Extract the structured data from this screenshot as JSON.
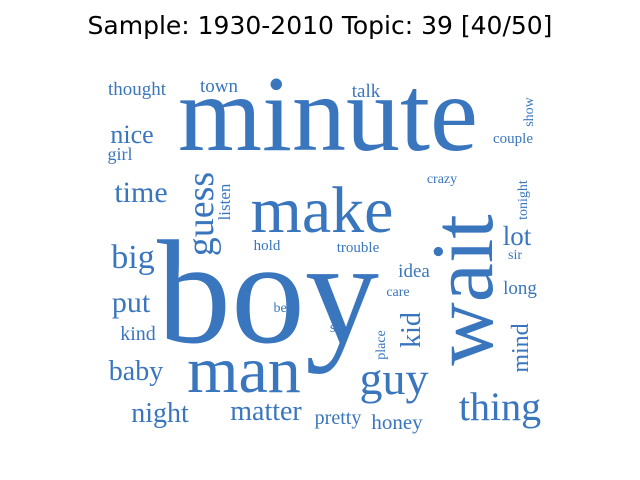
{
  "title": "Sample: 1930-2010 Topic: 39 [40/50]",
  "colors": {
    "word": "#3a76be",
    "title": "#000000",
    "background": "#ffffff"
  },
  "words": [
    {
      "text": "minute"
    },
    {
      "text": "boy"
    },
    {
      "text": "wait",
      "rotated": true
    },
    {
      "text": "make"
    },
    {
      "text": "man"
    },
    {
      "text": "guy"
    },
    {
      "text": "thing"
    },
    {
      "text": "guess",
      "rotated": true
    },
    {
      "text": "time"
    },
    {
      "text": "big"
    },
    {
      "text": "put"
    },
    {
      "text": "night"
    },
    {
      "text": "matter"
    },
    {
      "text": "nice"
    },
    {
      "text": "baby"
    },
    {
      "text": "lot"
    },
    {
      "text": "kid",
      "rotated": true
    },
    {
      "text": "mind",
      "rotated": true
    },
    {
      "text": "kind"
    },
    {
      "text": "honey"
    },
    {
      "text": "pretty"
    },
    {
      "text": "thought"
    },
    {
      "text": "town"
    },
    {
      "text": "talk"
    },
    {
      "text": "girl"
    },
    {
      "text": "long"
    },
    {
      "text": "idea"
    },
    {
      "text": "listen",
      "rotated": true
    },
    {
      "text": "couple"
    },
    {
      "text": "show",
      "rotated": true
    },
    {
      "text": "tonight",
      "rotated": true
    },
    {
      "text": "hold"
    },
    {
      "text": "trouble"
    },
    {
      "text": "crazy"
    },
    {
      "text": "care"
    },
    {
      "text": "bet"
    },
    {
      "text": "sit"
    },
    {
      "text": "place",
      "rotated": true
    },
    {
      "text": "sir"
    }
  ]
}
